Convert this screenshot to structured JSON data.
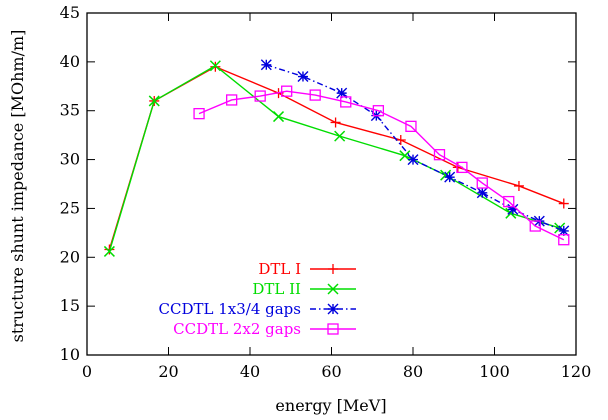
{
  "chart_data": {
    "type": "line",
    "title": "",
    "xlabel": "energy [MeV]",
    "ylabel": "structure shunt impedance [MOhm/m]",
    "xlim": [
      0,
      120
    ],
    "ylim": [
      10,
      45
    ],
    "grid": false,
    "legend_position": "bottom-left",
    "x_ticks": [
      "0",
      "20",
      "40",
      "60",
      "80",
      "100",
      "120"
    ],
    "y_ticks": [
      "10",
      "15",
      "20",
      "25",
      "30",
      "35",
      "40",
      "45"
    ],
    "series": [
      {
        "name": "DTL I",
        "color": "#ff0000",
        "marker": "plus",
        "dash": "",
        "x": [
          5.5,
          16.5,
          31.5,
          47,
          61,
          77,
          91,
          106,
          117
        ],
        "y": [
          20.8,
          36,
          39.5,
          36.8,
          33.8,
          32,
          29.2,
          27.3,
          25.5
        ]
      },
      {
        "name": "DTL II",
        "color": "#00dd00",
        "marker": "x",
        "dash": "",
        "x": [
          5.5,
          16.5,
          31.5,
          47,
          62,
          78,
          88,
          104,
          116
        ],
        "y": [
          20.6,
          36,
          39.6,
          34.4,
          32.4,
          30.4,
          28.4,
          24.5,
          23
        ]
      },
      {
        "name": "CCDTL 1x3/4 gaps",
        "color": "#0000dd",
        "marker": "star",
        "dash": "6,3,1.5,3",
        "x": [
          44,
          53,
          62.5,
          71,
          80,
          89,
          97,
          104.5,
          111,
          117
        ],
        "y": [
          39.7,
          38.5,
          36.8,
          34.5,
          30,
          28.2,
          26.6,
          24.9,
          23.7,
          22.7
        ]
      },
      {
        "name": "CCDTL 2x2 gaps",
        "color": "#ff00ff",
        "marker": "square",
        "dash": "",
        "x": [
          27.5,
          35.5,
          42.5,
          49,
          56,
          63.5,
          71.5,
          79.5,
          86.5,
          92,
          97,
          103.5,
          110,
          117
        ],
        "y": [
          34.7,
          36.1,
          36.5,
          37,
          36.6,
          35.9,
          35,
          33.4,
          30.5,
          29.2,
          27.6,
          25.7,
          23.2,
          21.8
        ]
      }
    ]
  }
}
